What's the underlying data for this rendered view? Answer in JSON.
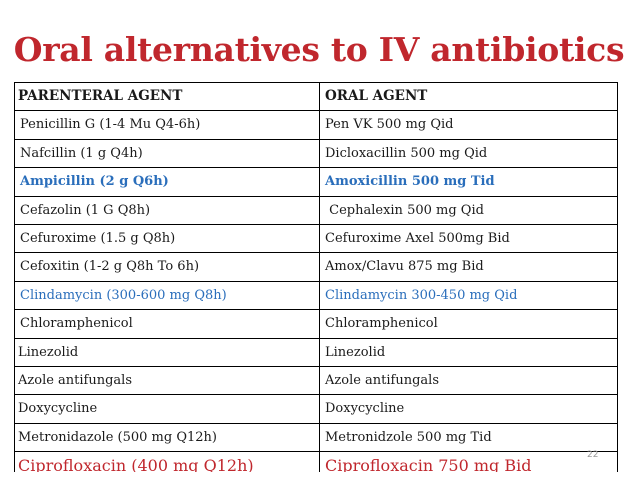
{
  "title": "Oral alternatives to IV antibiotics",
  "table": {
    "headers": [
      "PARENTERAL AGENT",
      "ORAL AGENT"
    ],
    "rows": [
      {
        "parenteral": "Penicillin G (1-4 Mu Q4-6h)",
        "oral": "Pen VK 500 mg Qid",
        "color": "#1a1a1a",
        "bold": false,
        "indent": true
      },
      {
        "parenteral": "Nafcillin (1 g Q4h)",
        "oral": "Dicloxacillin 500 mg Qid",
        "color": "#1a1a1a",
        "bold": false,
        "indent": true
      },
      {
        "parenteral": "Ampicillin (2 g Q6h)",
        "oral": "Amoxicillin 500 mg Tid",
        "color": "#2a6ebb",
        "bold": true,
        "indent": true
      },
      {
        "parenteral": "Cefazolin (1 G Q8h)",
        "oral": " Cephalexin 500 mg Qid",
        "color": "#1a1a1a",
        "bold": false,
        "indent": true
      },
      {
        "parenteral": "Cefuroxime (1.5 g Q8h)",
        "oral": "Cefuroxime Axel 500mg Bid",
        "color": "#1a1a1a",
        "bold": false,
        "indent": true
      },
      {
        "parenteral": "Cefoxitin (1-2 g Q8h To 6h)",
        "oral": "Amox/Clavu 875 mg Bid",
        "color": "#1a1a1a",
        "bold": false,
        "indent": true
      },
      {
        "parenteral": "Clindamycin (300-600 mg Q8h)",
        "oral": "Clindamycin 300-450 mg Qid",
        "color": "#2a6ebb",
        "bold": false,
        "indent": true
      },
      {
        "parenteral": "Chloramphenicol",
        "oral": "Chloramphenicol",
        "color": "#1a1a1a",
        "bold": false,
        "indent": true
      },
      {
        "parenteral": "Linezolid",
        "oral": "Linezolid",
        "color": "#1a1a1a",
        "bold": false,
        "indent": false
      },
      {
        "parenteral": "Azole antifungals",
        "oral": "Azole antifungals",
        "color": "#1a1a1a",
        "bold": false,
        "indent": false
      },
      {
        "parenteral": "Doxycycline",
        "oral": "Doxycycline",
        "color": "#1a1a1a",
        "bold": false,
        "indent": false
      },
      {
        "parenteral": "Metronidazole (500 mg Q12h)",
        "oral": "Metronidzole 500 mg Tid",
        "color": "#1a1a1a",
        "bold": false,
        "indent": false
      },
      {
        "parenteral": "Ciprofloxacin (400 mg Q12h)",
        "oral": "Ciprofloxacin 750 mg Bid",
        "color": "#c0272d",
        "bold": false,
        "indent": false
      }
    ]
  },
  "page_number": "22",
  "colors": {
    "title": "#c0272d",
    "highlight_blue": "#2a6ebb",
    "text": "#1a1a1a"
  }
}
